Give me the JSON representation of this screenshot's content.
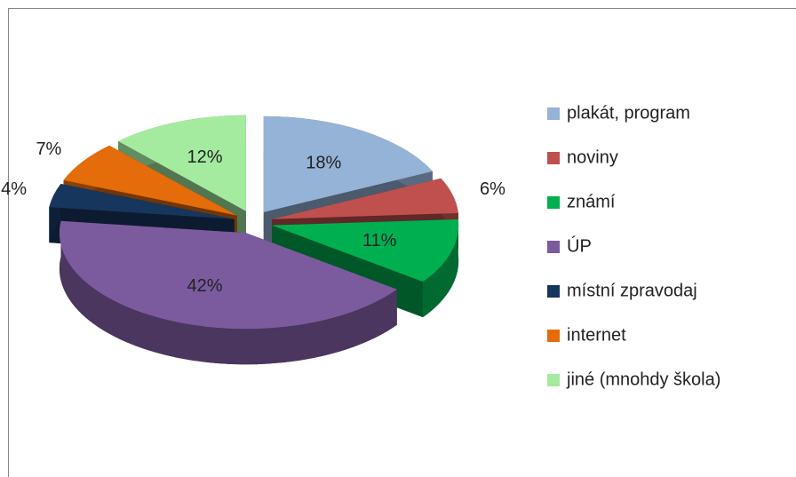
{
  "chart_data": {
    "type": "pie",
    "categories": [
      "plakát, program",
      "noviny",
      "známí",
      "ÚP",
      "místní zpravodaj",
      "internet",
      "jiné (mnohdy škola)"
    ],
    "values": [
      18,
      6,
      11,
      42,
      4,
      7,
      12
    ],
    "value_labels": [
      "18%",
      "6%",
      "11%",
      "42%",
      "4%",
      "7%",
      "12%"
    ],
    "colors": [
      "#95b3d7",
      "#c0504d",
      "#00b050",
      "#7c5a9e",
      "#17365d",
      "#e46c0a",
      "#a4eba0"
    ],
    "legend": "right"
  }
}
